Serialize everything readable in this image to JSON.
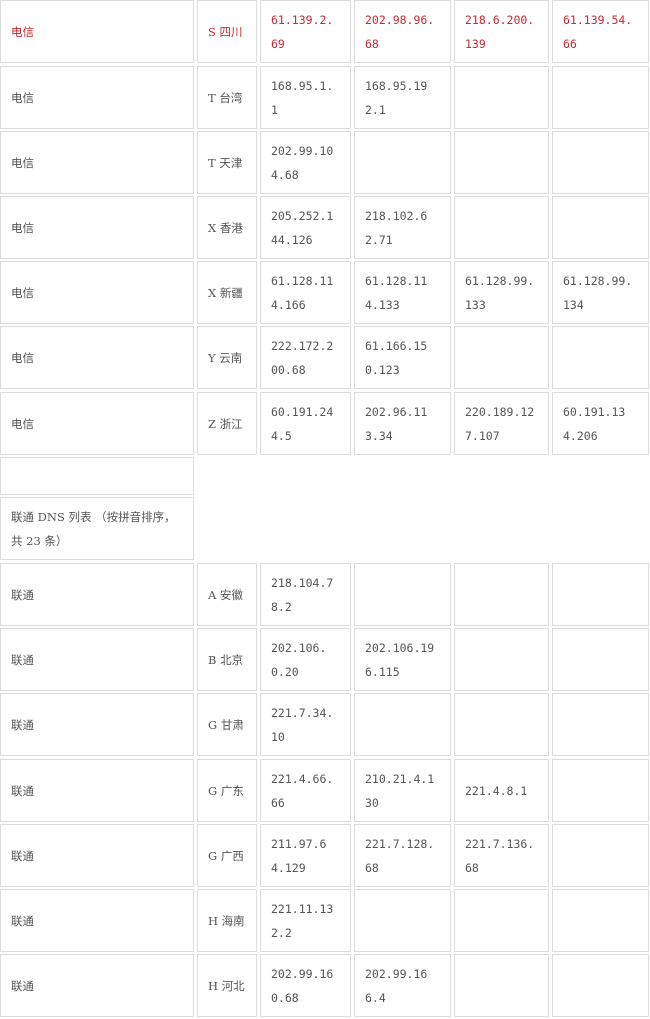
{
  "rows_top": [
    {
      "isp": "电信",
      "region": "S 四川",
      "ips": [
        "61.139.2.69",
        "202.98.96.68",
        "218.6.200.139",
        "61.139.54.66"
      ],
      "highlight": true
    },
    {
      "isp": "电信",
      "region": "T 台湾",
      "ips": [
        "168.95.1.1",
        "168.95.192.1",
        "",
        ""
      ]
    },
    {
      "isp": "电信",
      "region": "T 天津",
      "ips": [
        "202.99.104.68",
        "",
        "",
        ""
      ]
    },
    {
      "isp": "电信",
      "region": "X 香港",
      "ips": [
        "205.252.144.126",
        "218.102.62.71",
        "",
        ""
      ]
    },
    {
      "isp": "电信",
      "region": "X 新疆",
      "ips": [
        "61.128.114.166",
        "61.128.114.133",
        "61.128.99.133",
        "61.128.99.134"
      ]
    },
    {
      "isp": "电信",
      "region": "Y 云南",
      "ips": [
        "222.172.200.68",
        "61.166.150.123",
        "",
        ""
      ]
    },
    {
      "isp": "电信",
      "region": "Z 浙江",
      "ips": [
        "60.191.244.5",
        "202.96.113.34",
        "220.189.127.107",
        "60.191.134.206"
      ]
    }
  ],
  "unicom_header": "联通 DNS 列表 （按拼音排序， 共 23 条）",
  "rows_bottom": [
    {
      "isp": "联通",
      "region": "A 安徽",
      "ips": [
        "218.104.78.2",
        "",
        "",
        ""
      ]
    },
    {
      "isp": "联通",
      "region": "B 北京",
      "ips": [
        "202.106.0.20",
        "202.106.196.115",
        "",
        ""
      ]
    },
    {
      "isp": "联通",
      "region": "G 甘肃",
      "ips": [
        "221.7.34.10",
        "",
        "",
        ""
      ]
    },
    {
      "isp": "联通",
      "region": "G 广东",
      "ips": [
        "221.4.66.66",
        "210.21.4.130",
        "221.4.8.1",
        ""
      ]
    },
    {
      "isp": "联通",
      "region": "G 广西",
      "ips": [
        "211.97.64.129",
        "221.7.128.68",
        "221.7.136.68",
        ""
      ]
    },
    {
      "isp": "联通",
      "region": "H 海南",
      "ips": [
        "221.11.132.2",
        "",
        "",
        ""
      ]
    },
    {
      "isp": "联通",
      "region": "H 河北",
      "ips": [
        "202.99.160.68",
        "202.99.166.4",
        "",
        ""
      ]
    }
  ],
  "colors": {
    "highlight": "#c8282e",
    "text": "#555555",
    "border": "#dcdcdc"
  }
}
